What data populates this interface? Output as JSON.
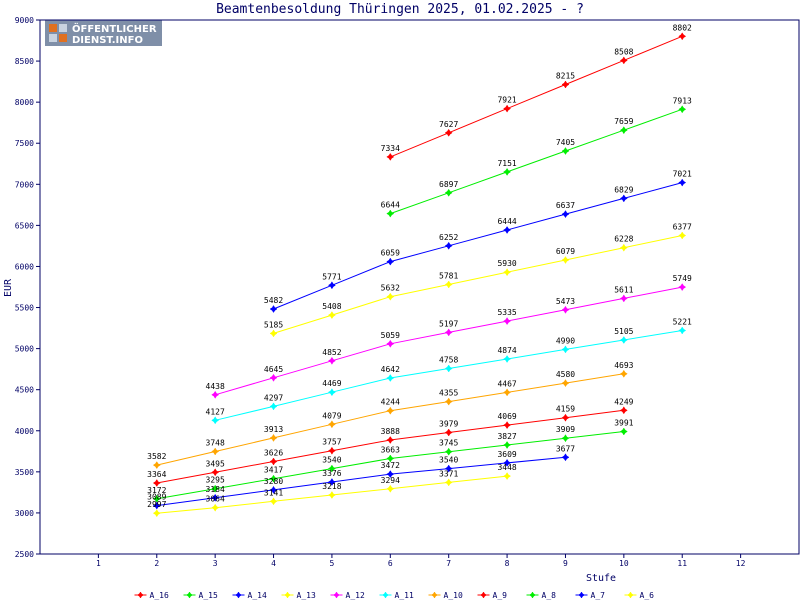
{
  "chart_data": {
    "type": "line",
    "title": "Beamtenbesoldung Thüringen 2025, 01.02.2025 - ?",
    "xlabel": "Stufe",
    "ylabel": "EUR",
    "xlim": [
      0,
      13
    ],
    "ylim": [
      2500,
      9000
    ],
    "xticks": [
      1,
      2,
      3,
      4,
      5,
      6,
      7,
      8,
      9,
      10,
      11,
      12
    ],
    "yticks": [
      2500,
      3000,
      3500,
      4000,
      4500,
      5000,
      5500,
      6000,
      6500,
      7000,
      7500,
      8000,
      8500,
      9000
    ],
    "grid": false,
    "legend_position": "bottom",
    "series": [
      {
        "name": "A_16",
        "color": "#ff0000",
        "x": [
          6,
          7,
          8,
          9,
          10,
          11
        ],
        "values": [
          7334,
          7627,
          7921,
          8215,
          8508,
          8802
        ]
      },
      {
        "name": "A_15",
        "color": "#00ee00",
        "x": [
          6,
          7,
          8,
          9,
          10,
          11
        ],
        "values": [
          6644,
          6897,
          7151,
          7405,
          7659,
          7913
        ]
      },
      {
        "name": "A_14",
        "color": "#0000ff",
        "x": [
          4,
          5,
          6,
          7,
          8,
          9,
          10,
          11
        ],
        "values": [
          5482,
          5771,
          6059,
          6252,
          6444,
          6637,
          6829,
          7021
        ]
      },
      {
        "name": "A_13",
        "color": "#ffff00",
        "x": [
          4,
          5,
          6,
          7,
          8,
          9,
          10,
          11
        ],
        "values": [
          5185,
          5408,
          5632,
          5781,
          5930,
          6079,
          6228,
          6377
        ]
      },
      {
        "name": "A_12",
        "color": "#ff00ff",
        "x": [
          3,
          4,
          5,
          6,
          7,
          8,
          9,
          10,
          11
        ],
        "values": [
          4438,
          4645,
          4852,
          5059,
          5197,
          5335,
          5473,
          5611,
          5749
        ]
      },
      {
        "name": "A_11",
        "color": "#00ffff",
        "x": [
          3,
          4,
          5,
          6,
          7,
          8,
          9,
          10,
          11
        ],
        "values": [
          4127,
          4297,
          4469,
          4642,
          4758,
          4874,
          4990,
          5105,
          5221
        ]
      },
      {
        "name": "A_10",
        "color": "#ffa500",
        "x": [
          2,
          3,
          4,
          5,
          6,
          7,
          8,
          9,
          10
        ],
        "values": [
          3582,
          3748,
          3913,
          4079,
          4244,
          4355,
          4467,
          4580,
          4693
        ]
      },
      {
        "name": "A_9",
        "color": "#ff0000",
        "x": [
          2,
          3,
          4,
          5,
          6,
          7,
          8,
          9,
          10
        ],
        "values": [
          3364,
          3495,
          3626,
          3757,
          3888,
          3979,
          4069,
          4159,
          4249
        ]
      },
      {
        "name": "A_8",
        "color": "#00ee00",
        "x": [
          2,
          3,
          4,
          5,
          6,
          7,
          8,
          9,
          10
        ],
        "values": [
          3172,
          3295,
          3417,
          3540,
          3663,
          3745,
          3827,
          3909,
          3991
        ]
      },
      {
        "name": "A_7",
        "color": "#0000ff",
        "x": [
          2,
          3,
          4,
          5,
          6,
          7,
          8,
          9
        ],
        "values": [
          3089,
          3184,
          3280,
          3376,
          3472,
          3540,
          3609,
          3677
        ]
      },
      {
        "name": "A_6",
        "color": "#ffff00",
        "x": [
          2,
          3,
          4,
          5,
          6,
          7,
          8
        ],
        "values": [
          2997,
          3064,
          3141,
          3218,
          3294,
          3371,
          3448
        ]
      }
    ]
  },
  "logo": {
    "line1": "ÖFFENTLICHER",
    "line2": "DIENST.INFO",
    "bg_color": "#7f8fa8",
    "accent_color": "#e07020"
  },
  "colors": {
    "axis": "#000066",
    "plot_border": "#000066"
  }
}
